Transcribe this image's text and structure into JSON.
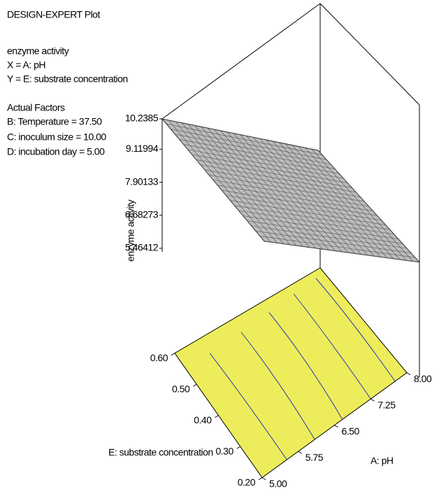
{
  "chart_data": {
    "type": "surface3d",
    "header": [
      "DESIGN-EXPERT Plot",
      "enzyme activity",
      "X = A: pH",
      "Y = E: substrate concentration"
    ],
    "factors": [
      "Actual Factors",
      "B: Temperature = 37.50",
      "C: inoculum size = 10.00",
      "D: incubation day = 5.00"
    ],
    "x_label": "A: pH",
    "y_label": "E: substrate concentration",
    "z_label": "enzyme activity",
    "xlim": [
      5,
      8
    ],
    "xticks": [
      {
        "value": 5,
        "label": "5.00"
      },
      5.75,
      {
        "value": 6.5,
        "label": "6.50"
      },
      7.25,
      {
        "value": 8,
        "label": "8.00"
      }
    ],
    "ylim": [
      0.2,
      0.6
    ],
    "yticks": [
      {
        "value": 0.2,
        "label": "0.20"
      },
      {
        "value": 0.3,
        "label": "0.30"
      },
      {
        "value": 0.4,
        "label": "0.40"
      },
      {
        "value": 0.5,
        "label": "0.50"
      },
      {
        "value": 0.6,
        "label": "0.60"
      }
    ],
    "zlim": [
      5.46412,
      10.2385
    ],
    "zticks": [
      5.46412,
      6.68273,
      7.90133,
      9.11994,
      10.2385
    ]
  }
}
